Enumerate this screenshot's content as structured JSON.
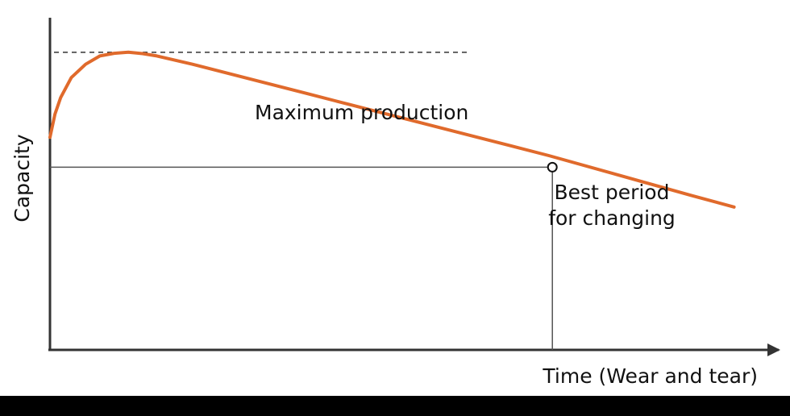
{
  "chart_data": {
    "type": "line",
    "title": "",
    "xlabel": "Time (Wear and tear)",
    "ylabel": "Capacity",
    "grid": false,
    "legend": "none",
    "xlim": [
      0,
      100
    ],
    "ylim": [
      0,
      100
    ],
    "series": [
      {
        "color": "#e06a2c",
        "x": [
          0,
          0.7,
          1.5,
          3,
          5,
          7,
          9,
          11,
          13,
          15,
          20,
          30,
          40,
          50,
          60,
          70,
          80,
          90,
          96
        ],
        "y": [
          64,
          71,
          76,
          82,
          86,
          88.5,
          89.3,
          89.6,
          89.2,
          88.5,
          86,
          80.5,
          75,
          69.5,
          64,
          58.5,
          52.5,
          46.5,
          43
        ]
      }
    ],
    "annotations": {
      "max_production": {
        "label": "Maximum production",
        "y": 89.6,
        "x_end": 59
      },
      "best_period": {
        "label_line1": "Best period",
        "label_line2": "for changing",
        "x": 70.5,
        "y": 55
      }
    }
  },
  "colors": {
    "curve": "#e06a2c",
    "axis": "#333333",
    "guide": "#555555",
    "text": "#111111"
  }
}
